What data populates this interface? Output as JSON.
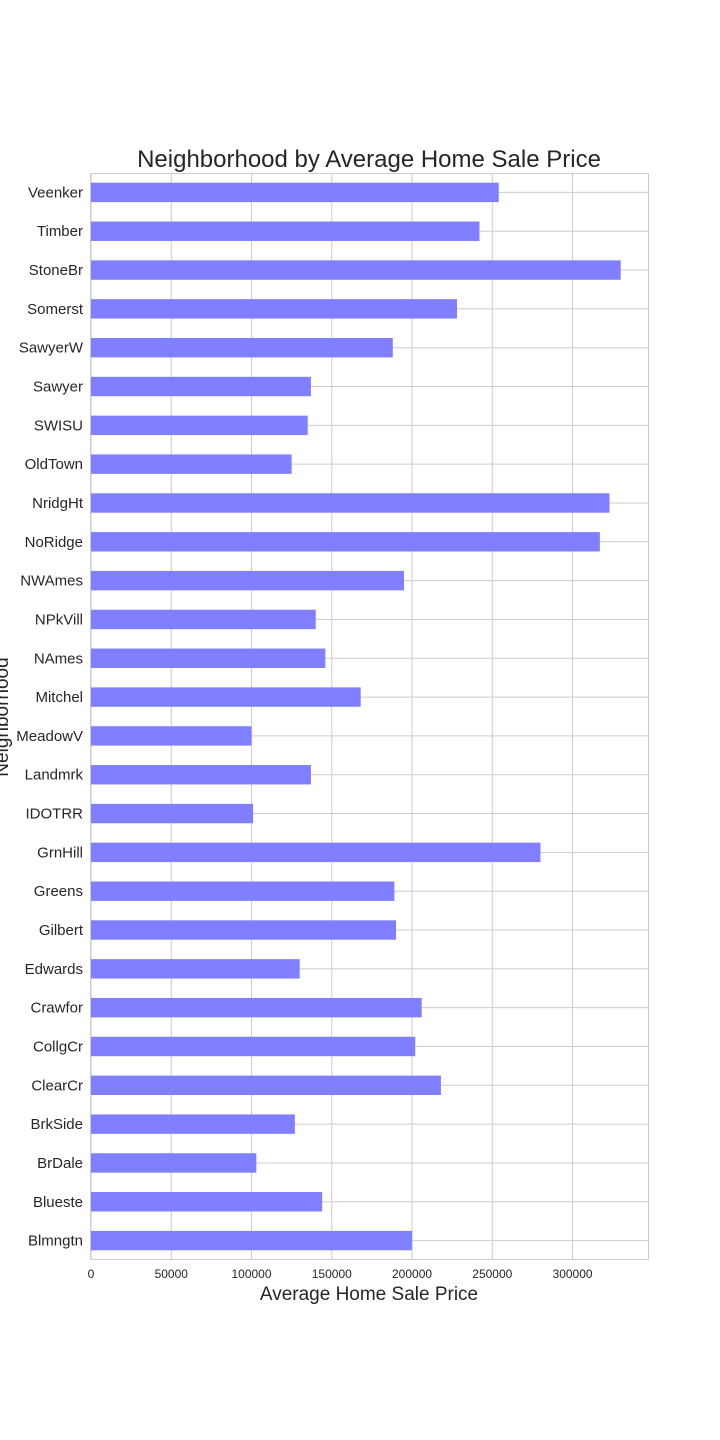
{
  "chart_data": {
    "type": "bar",
    "orientation": "horizontal",
    "title": "Neighborhood by Average Home Sale Price",
    "xlabel": "Average Home Sale Price",
    "ylabel": "Neighborhood",
    "xlim": [
      0,
      347000
    ],
    "xticks": [
      0,
      50000,
      100000,
      150000,
      200000,
      250000,
      300000
    ],
    "grid": true,
    "bar_color": "#7f7fff",
    "categories": [
      "Veenker",
      "Timber",
      "StoneBr",
      "Somerst",
      "SawyerW",
      "Sawyer",
      "SWISU",
      "OldTown",
      "NridgHt",
      "NoRidge",
      "NWAmes",
      "NPkVill",
      "NAmes",
      "Mitchel",
      "MeadowV",
      "Landmrk",
      "IDOTRR",
      "GrnHill",
      "Greens",
      "Gilbert",
      "Edwards",
      "Crawfor",
      "CollgCr",
      "ClearCr",
      "BrkSide",
      "BrDale",
      "Blueste",
      "Blmngtn"
    ],
    "values": [
      254000,
      242000,
      330000,
      228000,
      188000,
      137000,
      135000,
      125000,
      323000,
      317000,
      195000,
      140000,
      146000,
      168000,
      100000,
      137000,
      101000,
      280000,
      189000,
      190000,
      130000,
      206000,
      202000,
      218000,
      127000,
      103000,
      144000,
      200000
    ]
  }
}
